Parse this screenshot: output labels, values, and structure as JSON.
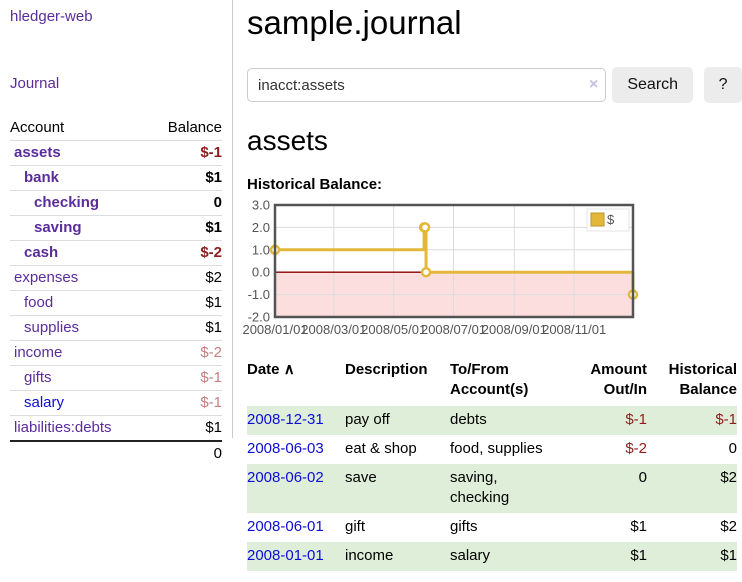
{
  "app": {
    "brand": "hledger-web"
  },
  "sidebar": {
    "journal_link": "Journal",
    "accounts": {
      "header": {
        "account": "Account",
        "balance": "Balance"
      },
      "rows": [
        {
          "name": "assets",
          "balance": "$-1"
        },
        {
          "name": "bank",
          "balance": "$1"
        },
        {
          "name": "checking",
          "balance": "0"
        },
        {
          "name": "saving",
          "balance": "$1"
        },
        {
          "name": "cash",
          "balance": "$-2"
        },
        {
          "name": "expenses",
          "balance": "$2"
        },
        {
          "name": "food",
          "balance": "$1"
        },
        {
          "name": "supplies",
          "balance": "$1"
        },
        {
          "name": "income",
          "balance": "$-2"
        },
        {
          "name": "gifts",
          "balance": "$-1"
        },
        {
          "name": "salary",
          "balance": "$-1"
        },
        {
          "name": "liabilities:debts",
          "balance": "$1"
        }
      ],
      "total": "0"
    }
  },
  "header": {
    "title": "sample.journal"
  },
  "search": {
    "value": "inacct:assets",
    "clear_icon": "×",
    "button_label": "Search",
    "help_label": "?"
  },
  "account_page": {
    "heading": "assets",
    "chart_title": "Historical Balance:"
  },
  "chart_data": {
    "type": "line",
    "title": "Historical Balance",
    "step": true,
    "xlim": [
      "2008-01-01",
      "2008-12-31"
    ],
    "ylim": [
      -2,
      3
    ],
    "series": [
      {
        "name": "$",
        "color": "#e3b83a",
        "marker_fill": "#ffffff",
        "points": [
          [
            "2008-01-01",
            1
          ],
          [
            "2008-06-01",
            2
          ],
          [
            "2008-06-02",
            2
          ],
          [
            "2008-06-03",
            0
          ],
          [
            "2008-12-31",
            -1
          ]
        ]
      }
    ],
    "yticks": [
      {
        "value": 3,
        "label": "3.0"
      },
      {
        "value": 2,
        "label": "2.0"
      },
      {
        "value": 1,
        "label": "1.0"
      },
      {
        "value": 0,
        "label": "0.0"
      },
      {
        "value": -1,
        "label": "-1.0"
      },
      {
        "value": -2,
        "label": "-2.0"
      }
    ],
    "xticks": [
      {
        "date": "2008-01-01",
        "label": "2008/01/01"
      },
      {
        "date": "2008-03-01",
        "label": "2008/03/01"
      },
      {
        "date": "2008-05-01",
        "label": "2008/05/01"
      },
      {
        "date": "2008-07-01",
        "label": "2008/07/01"
      },
      {
        "date": "2008-09-01",
        "label": "2008/09/01"
      },
      {
        "date": "2008-11-01",
        "label": "2008/11/01"
      }
    ],
    "grid": true,
    "legend_position": "top-right",
    "zero_line_color": "#8b0000",
    "negative_region_color": "#fcdede",
    "border_color": "#545454",
    "gridline_color": "#dcdcdc"
  },
  "transactions": {
    "headers": {
      "date": "Date",
      "sort_icon": "∧",
      "description": "Description",
      "accounts": "To/From Account(s)",
      "amount": "Amount Out/In",
      "balance": "Historical Balance"
    },
    "rows": [
      {
        "date": "2008-12-31",
        "description": "pay off",
        "accounts": "debts",
        "amount": "$-1",
        "balance": "$-1"
      },
      {
        "date": "2008-06-03",
        "description": "eat & shop",
        "accounts": "food, supplies",
        "amount": "$-2",
        "balance": "0"
      },
      {
        "date": "2008-06-02",
        "description": "save",
        "accounts": "saving, checking",
        "amount": "0",
        "balance": "$2"
      },
      {
        "date": "2008-06-01",
        "description": "gift",
        "accounts": "gifts",
        "amount": "$1",
        "balance": "$2"
      },
      {
        "date": "2008-01-01",
        "description": "income",
        "accounts": "salary",
        "amount": "$1",
        "balance": "$1"
      }
    ]
  },
  "colors": {
    "link_purple": "#5a2d9a",
    "link_blue": "#0d0dd6",
    "negative_strong": "#8f1d1d",
    "negative_faded": "#c47f7f",
    "row_stripe_green": "#dfeed8",
    "chart_gold": "#e3b83a"
  }
}
